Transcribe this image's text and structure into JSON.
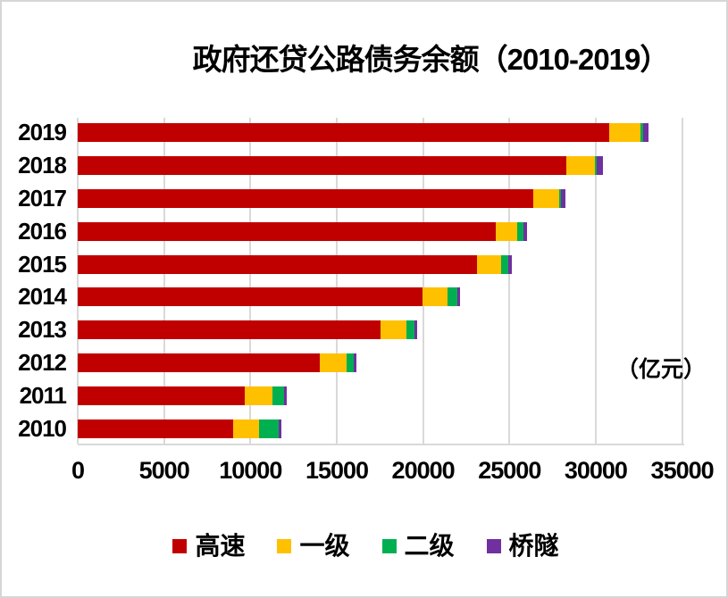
{
  "chart_data": {
    "type": "bar",
    "orientation": "horizontal",
    "stacked": true,
    "title": "政府还贷公路债务余额（2010-2019）",
    "unit_label": "（亿元）",
    "categories": [
      "2019",
      "2018",
      "2017",
      "2016",
      "2015",
      "2014",
      "2013",
      "2012",
      "2011",
      "2010"
    ],
    "category_order": "top-to-bottom",
    "series": [
      {
        "name": "高速",
        "key": "expressway",
        "color": "#c00000",
        "values": [
          30780,
          28320,
          26390,
          24200,
          23110,
          19970,
          17550,
          14000,
          9660,
          9020
        ]
      },
      {
        "name": "一级",
        "key": "first-class",
        "color": "#ffc000",
        "values": [
          1810,
          1610,
          1500,
          1240,
          1410,
          1460,
          1470,
          1560,
          1600,
          1470
        ]
      },
      {
        "name": "二级",
        "key": "second-class",
        "color": "#00b050",
        "values": [
          140,
          130,
          100,
          390,
          430,
          560,
          500,
          440,
          690,
          1150
        ]
      },
      {
        "name": "桥隧",
        "key": "bridge-tunnel",
        "color": "#7030a0",
        "values": [
          330,
          380,
          250,
          210,
          180,
          170,
          150,
          130,
          170,
          170
        ]
      }
    ],
    "x_ticks": [
      0,
      5000,
      10000,
      15000,
      20000,
      25000,
      30000,
      35000
    ],
    "xlim": [
      0,
      35000
    ],
    "grid": "vertical",
    "gridline_color": "#d9d9d9",
    "legend_position": "bottom",
    "background_color": "#ffffff",
    "border_color": "#d6d6d6"
  }
}
